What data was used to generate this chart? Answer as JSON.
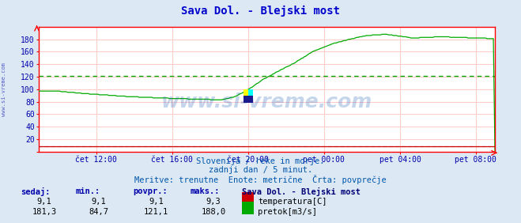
{
  "title": "Sava Dol. - Blejski most",
  "title_color": "#0000cc",
  "bg_color": "#dce9f5",
  "plot_bg_color": "#ffffff",
  "grid_color": "#ffcccc",
  "axis_color": "#ff0000",
  "watermark": "www.si-vreme.com",
  "watermark_color": "#1a5fb4",
  "watermark_alpha": 0.25,
  "xlabel_color": "#0000aa",
  "xtick_labels": [
    "čet 12:00",
    "čet 16:00",
    "čet 20:00",
    "pet 00:00",
    "pet 04:00",
    "pet 08:00"
  ],
  "xtick_positions": [
    0.125,
    0.292,
    0.458,
    0.625,
    0.792,
    0.958
  ],
  "ylim": [
    0,
    200
  ],
  "ytick_vals": [
    20,
    40,
    60,
    80,
    100,
    120,
    140,
    160,
    180
  ],
  "avg_line_temp": 9.1,
  "avg_line_flow": 121.1,
  "temp_color": "#cc0000",
  "flow_color": "#00aa00",
  "subtitle1": "Slovenija / reke in morje.",
  "subtitle2": "zadnji dan / 5 minut.",
  "subtitle3": "Meritve: trenutne  Enote: metrične  Črta: povprečje",
  "subtitle_color": "#0055aa",
  "table_header_color": "#0000aa",
  "legend_title": "Sava Dol. - Blejski most",
  "legend_title_color": "#000077",
  "left_label": "www.si-vreme.com",
  "left_label_color": "#0000aa",
  "n_points": 288
}
